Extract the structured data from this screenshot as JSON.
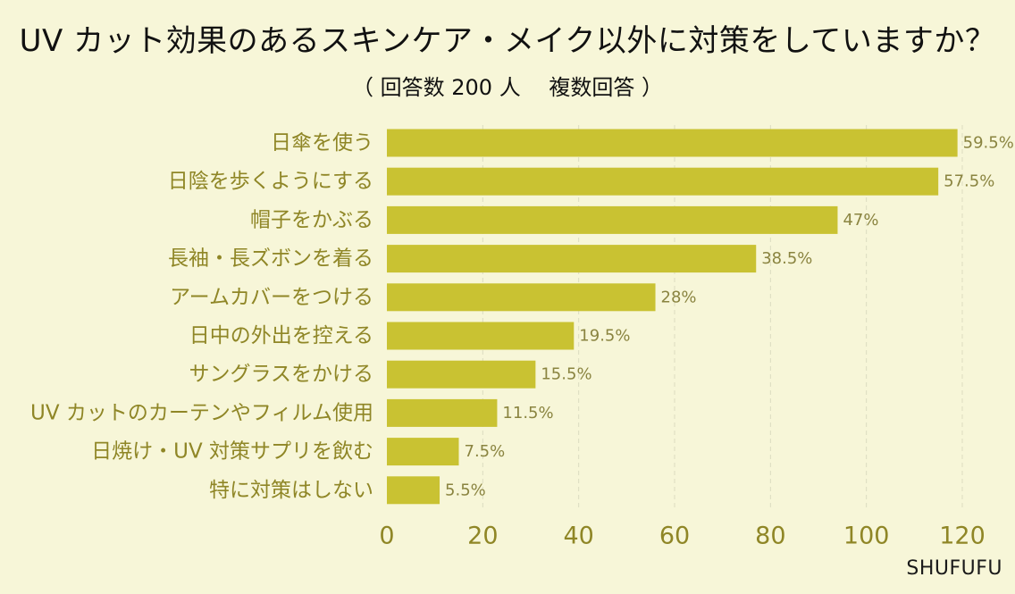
{
  "title": "UV カット効果のあるスキンケア・メイク以外に対策をしていますか？",
  "subtitle": "（ 回答数 200 人　 複数回答 ）",
  "watermark": "SHUFUFU",
  "colors": {
    "background": "#f7f6d8",
    "bar": "#c9c232",
    "category_text": "#8f8626",
    "value_text": "#8a8440",
    "tick_text": "#8f8626",
    "grid": "#dcdcc0"
  },
  "chart_data": {
    "type": "bar",
    "orientation": "horizontal",
    "title": "UV カット効果のあるスキンケア・メイク以外に対策をしていますか？",
    "subtitle": "（ 回答数 200 人　 複数回答 ）",
    "xlabel": "",
    "ylabel": "",
    "xlim": [
      0,
      120
    ],
    "xticks": [
      0,
      20,
      40,
      60,
      80,
      100,
      120
    ],
    "grid": true,
    "categories": [
      "日傘を使う",
      "日陰を歩くようにする",
      "帽子をかぶる",
      "長袖・長ズボンを着る",
      "アームカバーをつける",
      "日中の外出を控える",
      "サングラスをかける",
      "UV カットのカーテンやフィルム使用",
      "日焼け・UV 対策サプリを飲む",
      "特に対策はしない"
    ],
    "values": [
      119,
      115,
      94,
      77,
      56,
      39,
      31,
      23,
      15,
      11
    ],
    "data_labels": [
      "59.5%",
      "57.5%",
      "47%",
      "38.5%",
      "28%",
      "19.5%",
      "15.5%",
      "11.5%",
      "7.5%",
      "5.5%"
    ]
  }
}
